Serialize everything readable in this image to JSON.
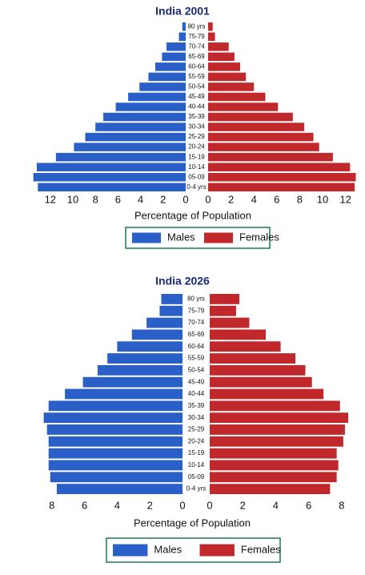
{
  "chart_data": [
    {
      "type": "pyramid",
      "title": "India 2001",
      "xlabel": "Percentage of Population",
      "categories": [
        "80 yrs",
        "75-79",
        "70-74",
        "65-69",
        "60-64",
        "55-59",
        "50-54",
        "45-49",
        "40-44",
        "35-39",
        "30-34",
        "25-29",
        "20-24",
        "15-19",
        "10-14",
        "05-09",
        "0-4 yrs"
      ],
      "series": [
        {
          "name": "Males",
          "color": "#2a5fc8",
          "xlim": [
            0,
            14
          ],
          "xticks": [
            0,
            2,
            4,
            6,
            8,
            10,
            12
          ],
          "values": [
            0.3,
            0.6,
            1.7,
            2.1,
            2.7,
            3.3,
            4.1,
            5.1,
            6.2,
            7.3,
            8.0,
            8.9,
            9.9,
            11.5,
            13.2,
            13.5,
            13.1
          ]
        },
        {
          "name": "Females",
          "color": "#c0282c",
          "xlim": [
            0,
            13.5
          ],
          "xticks": [
            0,
            2,
            4,
            6,
            8,
            10,
            12
          ],
          "values": [
            0.4,
            0.6,
            1.8,
            2.3,
            2.8,
            3.3,
            4.0,
            5.0,
            6.1,
            7.4,
            8.4,
            9.2,
            9.7,
            10.9,
            12.4,
            12.9,
            12.8
          ]
        }
      ]
    },
    {
      "type": "pyramid",
      "title": "India 2026",
      "xlabel": "Percentage of Population",
      "categories": [
        "80 yrs",
        "75-79",
        "70-74",
        "65-69",
        "60-64",
        "55-59",
        "50-54",
        "45-49",
        "40-44",
        "35-39",
        "30-34",
        "25-29",
        "20-24",
        "15-19",
        "10-14",
        "05-09",
        "0-4 yrs"
      ],
      "series": [
        {
          "name": "Males",
          "color": "#2a5fc8",
          "xlim": [
            0,
            9
          ],
          "xticks": [
            0,
            2,
            4,
            6,
            8
          ],
          "values": [
            1.3,
            1.4,
            2.2,
            3.1,
            4.0,
            4.6,
            5.2,
            6.1,
            7.2,
            8.2,
            8.5,
            8.3,
            8.2,
            8.2,
            8.2,
            8.1,
            7.7
          ]
        },
        {
          "name": "Females",
          "color": "#c0282c",
          "xlim": [
            0,
            9
          ],
          "xticks": [
            0,
            2,
            4,
            6,
            8
          ],
          "values": [
            1.8,
            1.6,
            2.4,
            3.4,
            4.3,
            5.2,
            5.8,
            6.2,
            6.9,
            7.9,
            8.4,
            8.2,
            8.1,
            7.7,
            7.8,
            7.7,
            7.3
          ]
        }
      ]
    }
  ]
}
